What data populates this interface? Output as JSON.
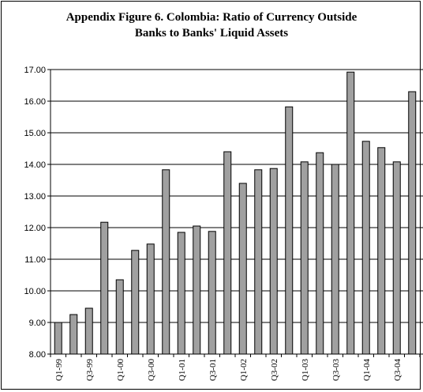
{
  "chart_data": {
    "type": "bar",
    "title_line1": "Appendix Figure 6. Colombia: Ratio of Currency Outside",
    "title_line2": "Banks to Banks' Liquid Assets",
    "xlabel": "",
    "ylabel": "",
    "ylim": [
      8.0,
      17.0
    ],
    "yticks": [
      "8.00",
      "9.00",
      "10.00",
      "11.00",
      "12.00",
      "13.00",
      "14.00",
      "15.00",
      "16.00",
      "17.00"
    ],
    "grid": true,
    "legend": "none",
    "bar_color": "#a0a0a0",
    "categories": [
      "Q1-99",
      "Q2-99",
      "Q3-99",
      "Q4-99",
      "Q1-00",
      "Q2-00",
      "Q3-00",
      "Q4-00",
      "Q1-01",
      "Q2-01",
      "Q3-01",
      "Q4-01",
      "Q1-02",
      "Q2-02",
      "Q3-02",
      "Q4-02",
      "Q1-03",
      "Q2-03",
      "Q3-03",
      "Q4-03",
      "Q1-04",
      "Q2-04",
      "Q3-04",
      "Q4-04"
    ],
    "xtick_labels_shown": [
      "Q1-99",
      "",
      "Q3-99",
      "",
      "Q1-00",
      "",
      "Q3-00",
      "",
      "Q1-01",
      "",
      "Q3-01",
      "",
      "Q1-02",
      "",
      "Q3-02",
      "",
      "Q1-03",
      "",
      "Q3-03",
      "",
      "Q1-04",
      "",
      "Q3-04",
      ""
    ],
    "values": [
      9.0,
      9.25,
      9.45,
      12.17,
      10.35,
      11.28,
      11.48,
      13.83,
      11.85,
      12.05,
      11.88,
      14.4,
      13.4,
      13.83,
      13.87,
      15.82,
      14.08,
      14.37,
      14.0,
      16.92,
      14.73,
      14.53,
      14.08,
      16.3
    ]
  }
}
